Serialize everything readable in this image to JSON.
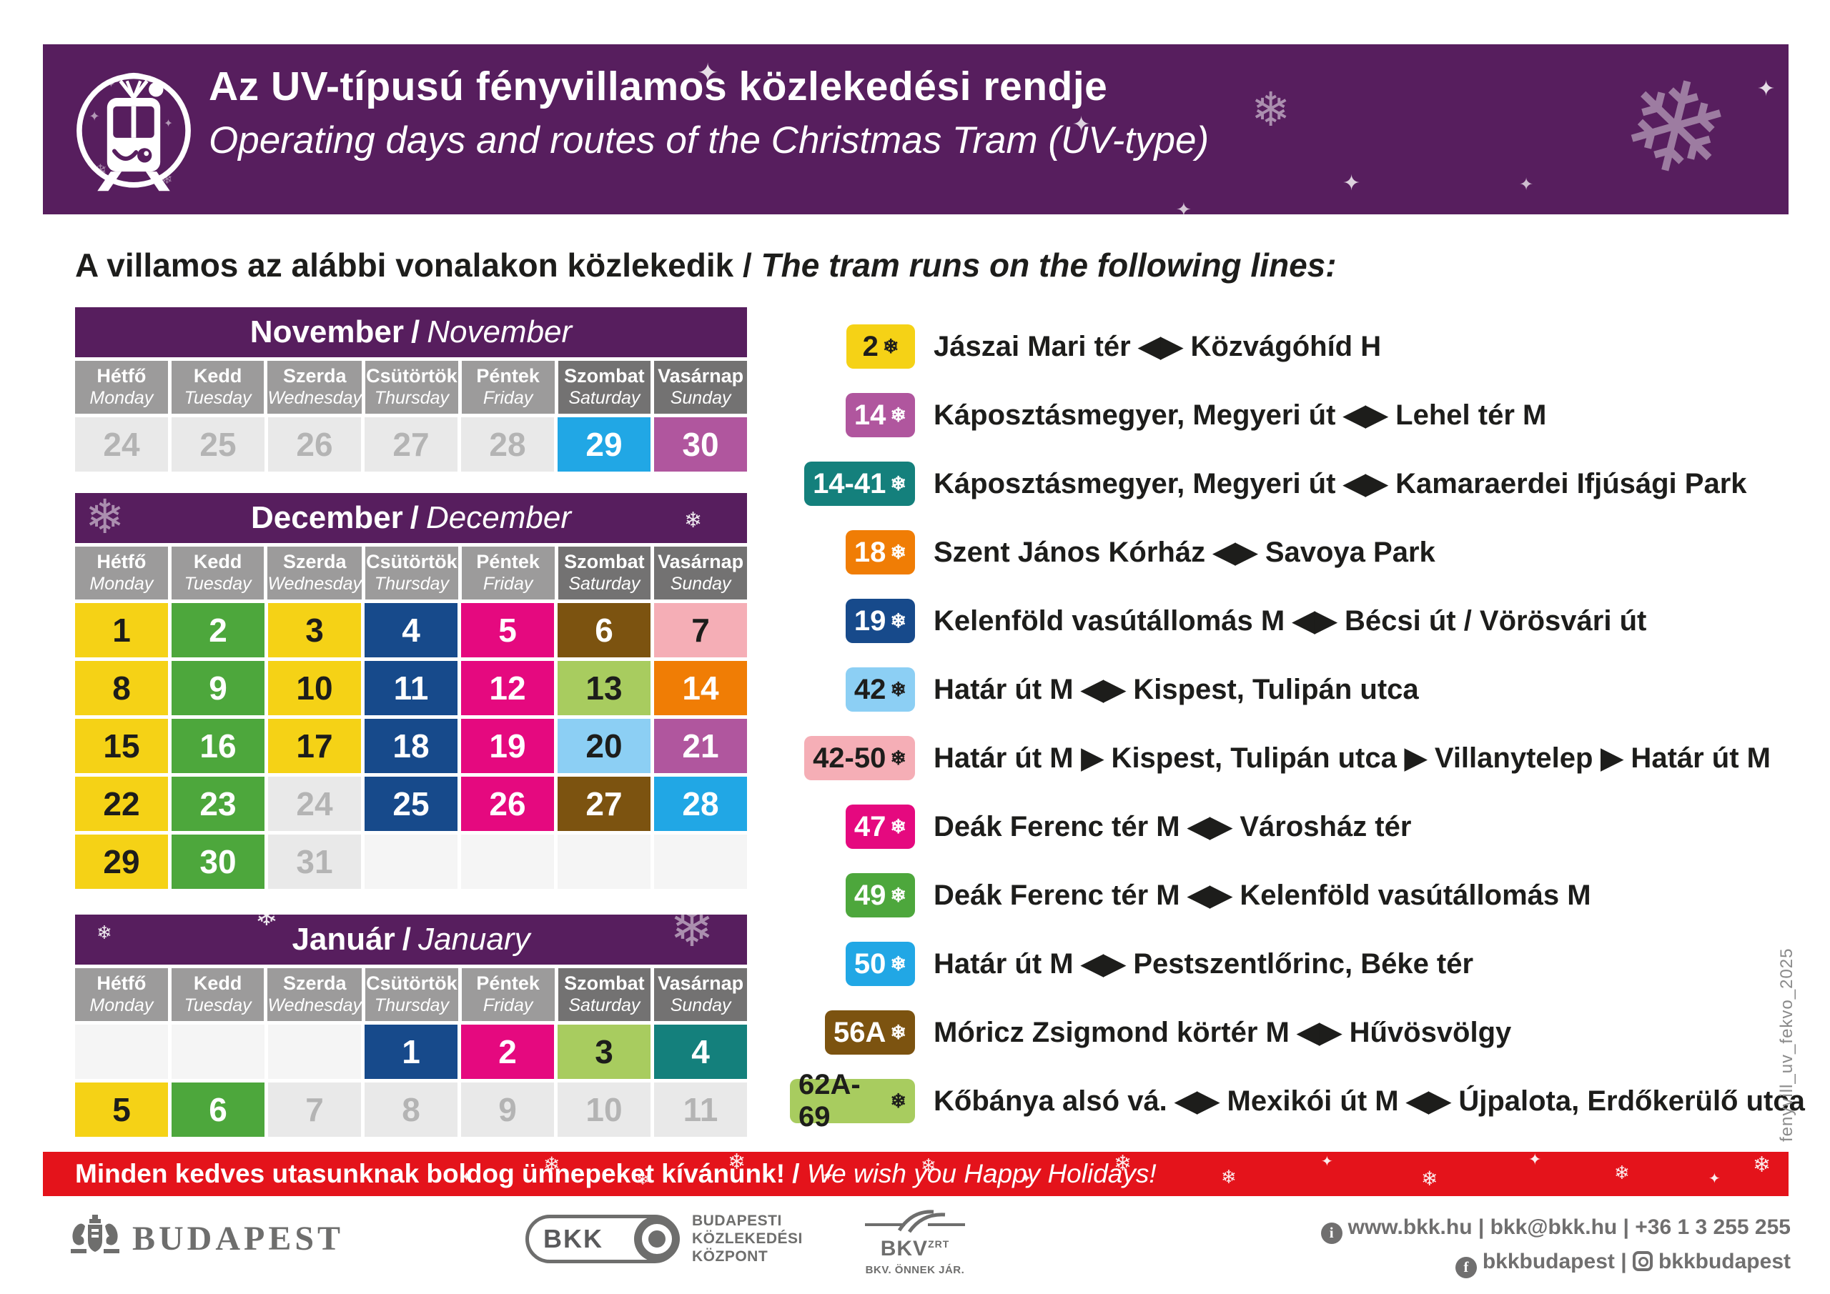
{
  "header": {
    "title_hu": "Az UV-típusú fényvillamos közlekedési rendje",
    "title_en": "Operating days and routes of the Christmas Tram (UV-type)"
  },
  "section_title": {
    "hu": "A villamos az alábbi vonalakon közlekedik",
    "sep": " / ",
    "en": "The tram runs on the following lines:"
  },
  "icons": {
    "snowflake": "❄",
    "sparkle": "✦"
  },
  "weekdays": [
    {
      "hu": "Hétfő",
      "en": "Monday",
      "weekend": false
    },
    {
      "hu": "Kedd",
      "en": "Tuesday",
      "weekend": false
    },
    {
      "hu": "Szerda",
      "en": "Wednesday",
      "weekend": false
    },
    {
      "hu": "Csütörtök",
      "en": "Thursday",
      "weekend": false
    },
    {
      "hu": "Péntek",
      "en": "Friday",
      "weekend": false
    },
    {
      "hu": "Szombat",
      "en": "Saturday",
      "weekend": true
    },
    {
      "hu": "Vasárnap",
      "en": "Sunday",
      "weekend": true
    }
  ],
  "cell_styles": {
    "yellow": {
      "bg": "#F5D216",
      "fg": "#1D1D1B"
    },
    "green": {
      "bg": "#4DA73C",
      "fg": "#FFFFFF"
    },
    "navy": {
      "bg": "#174A8B",
      "fg": "#FFFFFF"
    },
    "magenta": {
      "bg": "#E5097F",
      "fg": "#FFFFFF"
    },
    "brown": {
      "bg": "#7C5310",
      "fg": "#FFFFFF"
    },
    "pink": {
      "bg": "#F5AEB6",
      "fg": "#1D1D1B"
    },
    "lightgreen": {
      "bg": "#A8CC5F",
      "fg": "#1D1D1B"
    },
    "orange": {
      "bg": "#F07D05",
      "fg": "#FFFFFF"
    },
    "lightblue": {
      "bg": "#8CCFF4",
      "fg": "#1D1D1B"
    },
    "orchid": {
      "bg": "#B0569E",
      "fg": "#FFFFFF"
    },
    "cyan": {
      "bg": "#21A7E5",
      "fg": "#FFFFFF"
    },
    "teal": {
      "bg": "#14807C",
      "fg": "#FFFFFF"
    },
    "inactive": {
      "bg": "#E9E9E9",
      "fg": "#B4B4B4"
    },
    "empty": {
      "bg": "#F5F5F5",
      "fg": "transparent"
    }
  },
  "calendars": [
    {
      "title_hu": "November",
      "title_en": "November",
      "sep": " / ",
      "rows": [
        [
          {
            "d": "24",
            "s": "inactive"
          },
          {
            "d": "25",
            "s": "inactive"
          },
          {
            "d": "26",
            "s": "inactive"
          },
          {
            "d": "27",
            "s": "inactive"
          },
          {
            "d": "28",
            "s": "inactive"
          },
          {
            "d": "29",
            "s": "cyan"
          },
          {
            "d": "30",
            "s": "orchid"
          }
        ]
      ]
    },
    {
      "title_hu": "December",
      "title_en": "December",
      "sep": " / ",
      "rows": [
        [
          {
            "d": "1",
            "s": "yellow"
          },
          {
            "d": "2",
            "s": "green"
          },
          {
            "d": "3",
            "s": "yellow"
          },
          {
            "d": "4",
            "s": "navy"
          },
          {
            "d": "5",
            "s": "magenta"
          },
          {
            "d": "6",
            "s": "brown"
          },
          {
            "d": "7",
            "s": "pink"
          }
        ],
        [
          {
            "d": "8",
            "s": "yellow"
          },
          {
            "d": "9",
            "s": "green"
          },
          {
            "d": "10",
            "s": "yellow"
          },
          {
            "d": "11",
            "s": "navy"
          },
          {
            "d": "12",
            "s": "magenta"
          },
          {
            "d": "13",
            "s": "lightgreen"
          },
          {
            "d": "14",
            "s": "orange"
          }
        ],
        [
          {
            "d": "15",
            "s": "yellow"
          },
          {
            "d": "16",
            "s": "green"
          },
          {
            "d": "17",
            "s": "yellow"
          },
          {
            "d": "18",
            "s": "navy"
          },
          {
            "d": "19",
            "s": "magenta"
          },
          {
            "d": "20",
            "s": "lightblue"
          },
          {
            "d": "21",
            "s": "orchid"
          }
        ],
        [
          {
            "d": "22",
            "s": "yellow"
          },
          {
            "d": "23",
            "s": "green"
          },
          {
            "d": "24",
            "s": "inactive"
          },
          {
            "d": "25",
            "s": "navy"
          },
          {
            "d": "26",
            "s": "magenta"
          },
          {
            "d": "27",
            "s": "brown"
          },
          {
            "d": "28",
            "s": "cyan"
          }
        ],
        [
          {
            "d": "29",
            "s": "yellow"
          },
          {
            "d": "30",
            "s": "green"
          },
          {
            "d": "31",
            "s": "inactive"
          },
          {
            "d": "",
            "s": "empty"
          },
          {
            "d": "",
            "s": "empty"
          },
          {
            "d": "",
            "s": "empty"
          },
          {
            "d": "",
            "s": "empty"
          }
        ]
      ]
    },
    {
      "title_hu": "Január",
      "title_en": "January",
      "sep": " / ",
      "rows": [
        [
          {
            "d": "",
            "s": "empty"
          },
          {
            "d": "",
            "s": "empty"
          },
          {
            "d": "",
            "s": "empty"
          },
          {
            "d": "1",
            "s": "navy"
          },
          {
            "d": "2",
            "s": "magenta"
          },
          {
            "d": "3",
            "s": "lightgreen"
          },
          {
            "d": "4",
            "s": "teal"
          }
        ],
        [
          {
            "d": "5",
            "s": "yellow"
          },
          {
            "d": "6",
            "s": "green"
          },
          {
            "d": "7",
            "s": "inactive"
          },
          {
            "d": "8",
            "s": "inactive"
          },
          {
            "d": "9",
            "s": "inactive"
          },
          {
            "d": "10",
            "s": "inactive"
          },
          {
            "d": "11",
            "s": "inactive"
          }
        ]
      ]
    }
  ],
  "legend": [
    {
      "line": "2",
      "style": "yellow",
      "route": "Jászai Mari tér ◀▶ Közvágóhíd H"
    },
    {
      "line": "14",
      "style": "orchid",
      "route": "Káposztásmegyer, Megyeri út ◀▶ Lehel tér M"
    },
    {
      "line": "14-41",
      "style": "teal",
      "route": "Káposztásmegyer, Megyeri út ◀▶ Kamaraerdei Ifjúsági Park"
    },
    {
      "line": "18",
      "style": "orange",
      "route": "Szent János Kórház ◀▶ Savoya Park"
    },
    {
      "line": "19",
      "style": "navy",
      "route": "Kelenföld vasútállomás M ◀▶ Bécsi út / Vörösvári út"
    },
    {
      "line": "42",
      "style": "lightblue",
      "route": "Határ út M ◀▶ Kispest, Tulipán utca"
    },
    {
      "line": "42-50",
      "style": "pink",
      "route": "Határ út M ▶ Kispest, Tulipán utca ▶ Villanytelep ▶ Határ út M"
    },
    {
      "line": "47",
      "style": "magenta",
      "route": "Deák Ferenc tér M ◀▶ Városház tér"
    },
    {
      "line": "49",
      "style": "green",
      "route": "Deák Ferenc tér M ◀▶ Kelenföld vasútállomás M"
    },
    {
      "line": "50",
      "style": "cyan",
      "route": "Határ út M ◀▶ Pestszentlőrinc, Béke tér"
    },
    {
      "line": "56A",
      "style": "brown",
      "route": "Móricz Zsigmond körtér M ◀▶ Hűvösvölgy"
    },
    {
      "line": "62A-69",
      "style": "lightgreen",
      "route": "Kőbánya alsó vá. ◀▶ Mexikói út M ◀▶ Újpalota, Erdőkerülő utca"
    }
  ],
  "banner": {
    "hu": "Minden kedves utasunknak boldog ünnepeket kívánunk!",
    "sep": " / ",
    "en": "We wish you Happy Holidays!"
  },
  "logos": {
    "budapest": "BUDAPEST",
    "bkk": "BKK",
    "bkk_caption_1": "BUDAPESTI",
    "bkk_caption_2": "KÖZLEKEDÉSI",
    "bkk_caption_3": "KÖZPONT",
    "bkv": "BKV",
    "bkv_zrt": "ZRT",
    "bkv_caption": "BKV. ÖNNEK JÁR."
  },
  "contact": {
    "info_icon": "i",
    "line1": "www.bkk.hu | bkk@bkk.hu | +36 1 3 255 255",
    "facebook_icon": "f",
    "facebook": "bkkbudapest",
    "separator": " | ",
    "instagram": "bkkbudapest"
  },
  "watermark": "fenyvill_uv_fekvo_2025",
  "colors": {
    "purple": "#571E5E",
    "banner_red": "#E4131B",
    "logo_gray": "#6E6E6D",
    "text_dark": "#1D1D1B"
  }
}
